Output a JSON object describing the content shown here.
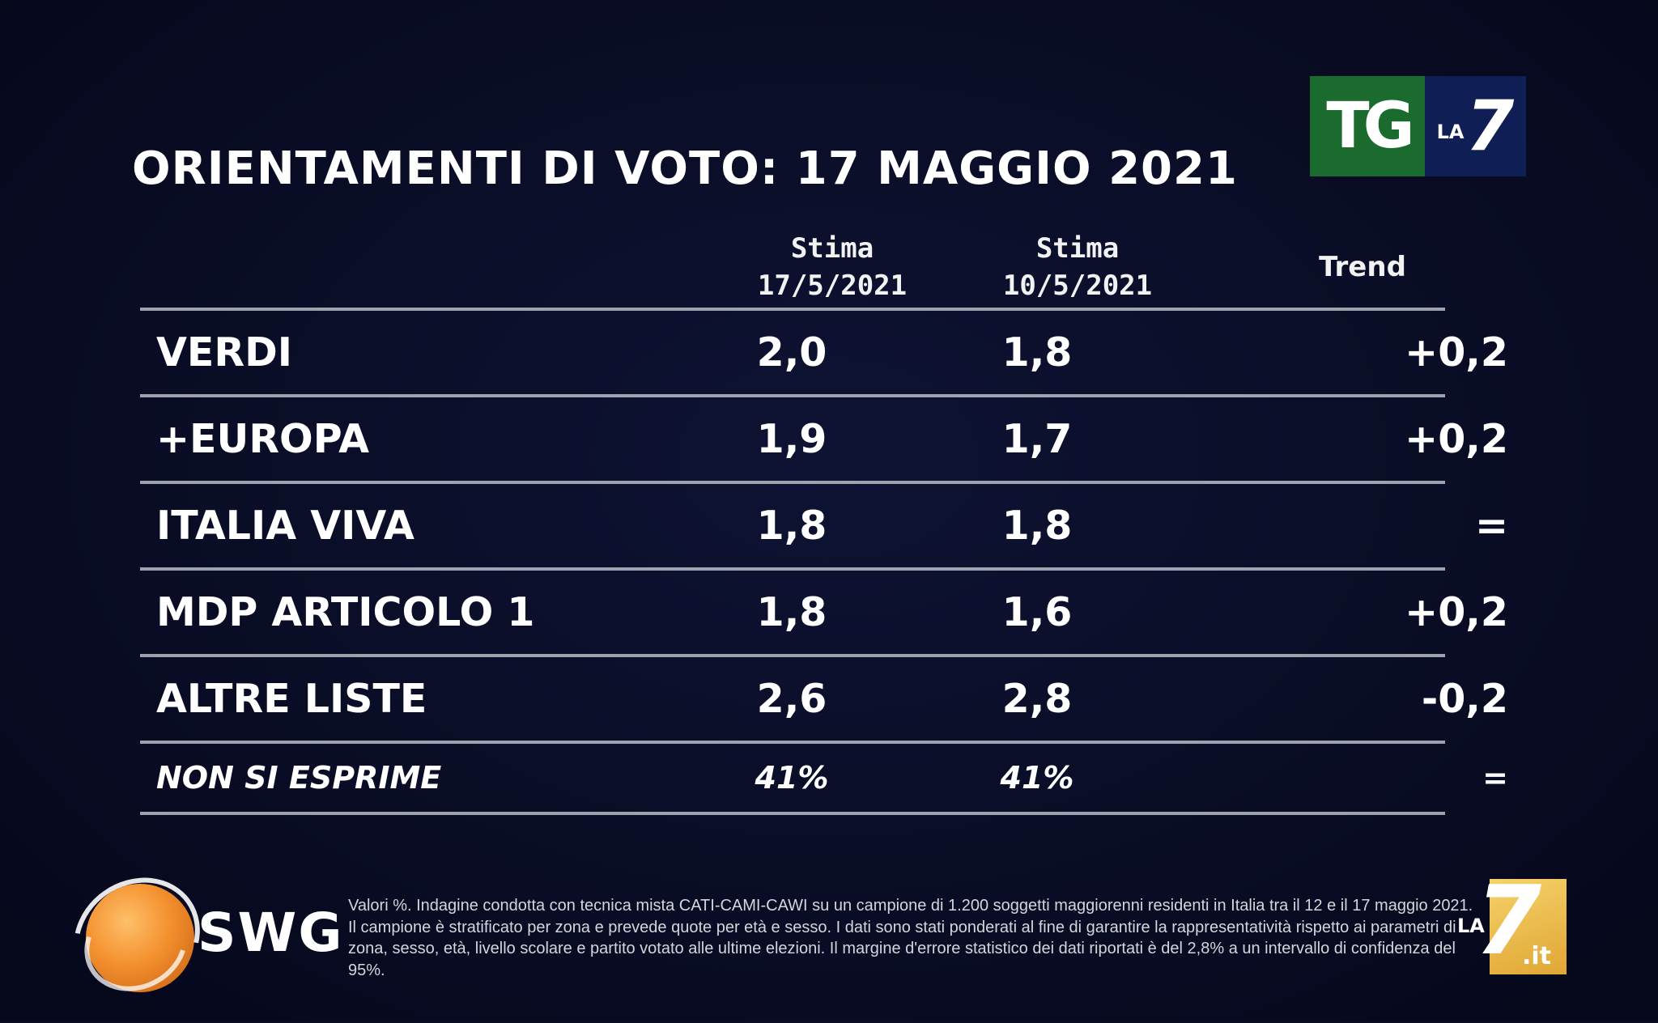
{
  "broadcaster_logo": {
    "tg": "TG",
    "la": "LA",
    "seven": "7"
  },
  "title": "ORIENTAMENTI DI VOTO: 17 MAGGIO 2021",
  "table": {
    "headers": {
      "col1_line1": "Stima",
      "col1_line2": "17/5/2021",
      "col2_line1": "Stima",
      "col2_line2": "10/5/2021",
      "col3": "Trend"
    },
    "rows": [
      {
        "name": "VERDI",
        "estimate_current": "2,0",
        "estimate_previous": "1,8",
        "trend": "+0,2"
      },
      {
        "name": "+EUROPA",
        "estimate_current": "1,9",
        "estimate_previous": "1,7",
        "trend": "+0,2"
      },
      {
        "name": "ITALIA VIVA",
        "estimate_current": "1,8",
        "estimate_previous": "1,8",
        "trend": "="
      },
      {
        "name": "MDP ARTICOLO 1",
        "estimate_current": "1,8",
        "estimate_previous": "1,6",
        "trend": "+0,2"
      },
      {
        "name": "ALTRE LISTE",
        "estimate_current": "2,6",
        "estimate_previous": "2,8",
        "trend": "-0,2"
      }
    ],
    "footer_row": {
      "name": "NON SI ESPRIME",
      "estimate_current": "41%",
      "estimate_previous": "41%",
      "trend": "="
    }
  },
  "pollster": {
    "name": "SWG"
  },
  "footnote": "Valori %. Indagine condotta con tecnica mista CATI-CAMI-CAWI su un campione di 1.200 soggetti maggiorenni residenti in Italia tra il 12 e il 17 maggio 2021. Il campione è stratificato per zona e prevede quote per età e sesso. I dati sono stati ponderati al fine di garantire la rappresentatività rispetto ai parametri di zona, sesso, età, livello scolare e partito votato alle ultime elezioni. Il margine d'errore statistico dei dati riportati è del 2,8% a un intervallo di confidenza del 95%.",
  "site_logo": {
    "la": "LA",
    "seven": "7",
    "it": ".it"
  },
  "colors": {
    "background": "#090c24",
    "tg_green": "#1c6b2e",
    "tg_blue": "#0f1f55",
    "swg_orange": "#f3902e",
    "la7it_gold": "#e0a634"
  }
}
